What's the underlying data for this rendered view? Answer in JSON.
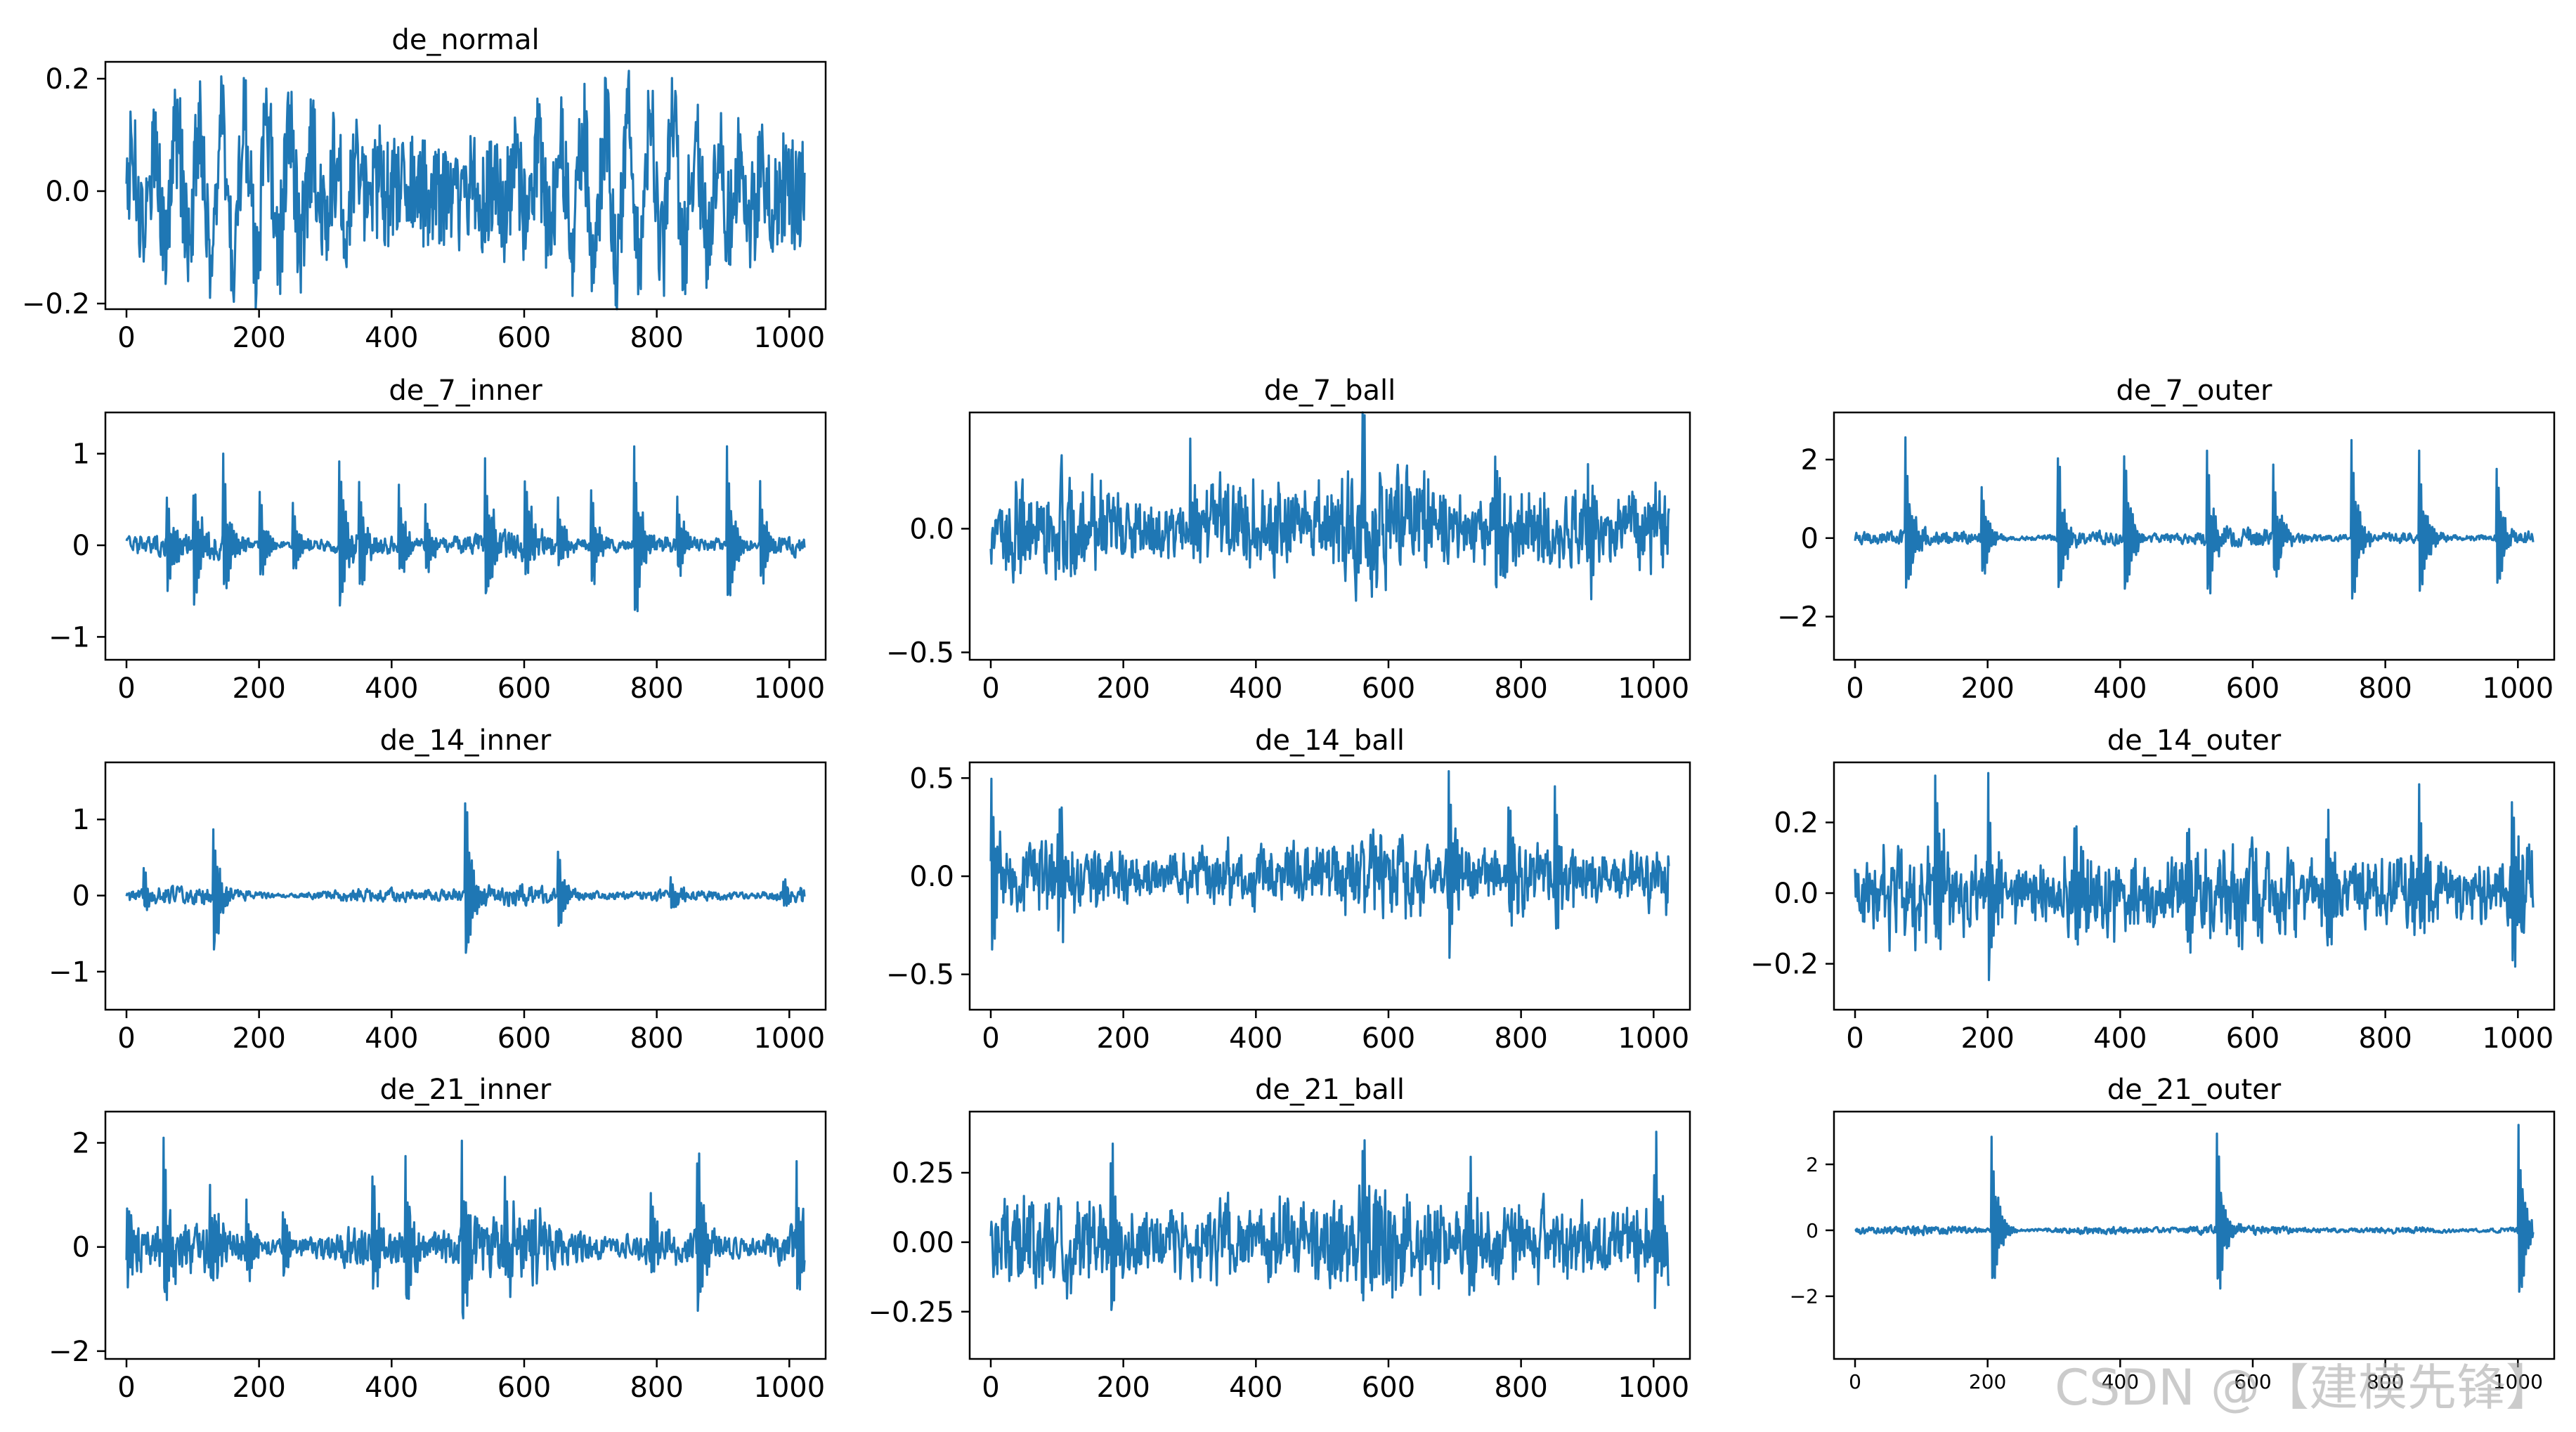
{
  "watermark": "CSDN @【建模先锋】",
  "colors": {
    "line": "#1f77b4",
    "axis": "#000000",
    "background": "#ffffff"
  },
  "chart_data": [
    {
      "type": "line",
      "title": "de_normal",
      "xlim": [
        0,
        1023
      ],
      "xticks": [
        0,
        200,
        400,
        600,
        800,
        1000
      ],
      "ylim": [
        -0.21,
        0.23
      ],
      "yticks": [
        -0.2,
        0.0,
        0.2
      ],
      "ytick_labels": [
        "−0.2",
        "0.0",
        "0.2"
      ],
      "signal": {
        "kind": "smooth",
        "amp": 0.1,
        "noise": 0.2,
        "period": 34,
        "seed": 1,
        "peaks": []
      }
    },
    {
      "type": "line",
      "title": "de_7_inner",
      "xlim": [
        0,
        1023
      ],
      "xticks": [
        0,
        200,
        400,
        600,
        800,
        1000
      ],
      "ylim": [
        -1.25,
        1.45
      ],
      "yticks": [
        -1,
        0,
        1
      ],
      "ytick_labels": [
        "−1",
        "0",
        "1"
      ],
      "signal": {
        "kind": "impulse",
        "amp": 0.12,
        "noise": 0.18,
        "seed": 2,
        "peaks": [
          [
            60,
            0.7
          ],
          [
            100,
            0.9
          ],
          [
            145,
            0.95
          ],
          [
            200,
            0.6
          ],
          [
            250,
            0.5
          ],
          [
            320,
            1.2
          ],
          [
            350,
            0.8
          ],
          [
            410,
            0.7
          ],
          [
            450,
            0.5
          ],
          [
            540,
            1.1
          ],
          [
            600,
            0.8
          ],
          [
            650,
            0.5
          ],
          [
            700,
            0.7
          ],
          [
            765,
            1.35
          ],
          [
            830,
            0.6
          ],
          [
            905,
            1.1
          ],
          [
            955,
            0.7
          ]
        ]
      }
    },
    {
      "type": "line",
      "title": "de_7_ball",
      "xlim": [
        0,
        1023
      ],
      "xticks": [
        0,
        200,
        400,
        600,
        800,
        1000
      ],
      "ylim": [
        -0.53,
        0.47
      ],
      "yticks": [
        -0.5,
        0.0
      ],
      "ytick_labels": [
        "−0.5",
        "0.0"
      ],
      "signal": {
        "kind": "dense",
        "amp": 0.17,
        "noise": 0.35,
        "seed": 3,
        "peaks": [
          [
            60,
            0.3
          ],
          [
            300,
            0.28
          ],
          [
            560,
            0.3
          ],
          [
            760,
            0.45
          ],
          [
            900,
            0.35
          ]
        ]
      }
    },
    {
      "type": "line",
      "title": "de_7_outer",
      "xlim": [
        0,
        1023
      ],
      "xticks": [
        0,
        200,
        400,
        600,
        800,
        1000
      ],
      "ylim": [
        -3.1,
        3.2
      ],
      "yticks": [
        -2,
        0,
        2
      ],
      "ytick_labels": [
        "−2",
        "0",
        "2"
      ],
      "signal": {
        "kind": "impulse",
        "amp": 0.18,
        "noise": 0.15,
        "seed": 4,
        "peaks": [
          [
            75,
            2.6
          ],
          [
            190,
            1.6
          ],
          [
            305,
            2.6
          ],
          [
            405,
            2.7
          ],
          [
            530,
            2.5
          ],
          [
            630,
            2.1
          ],
          [
            748,
            2.8
          ],
          [
            850,
            2.6
          ],
          [
            967,
            2.1
          ]
        ]
      }
    },
    {
      "type": "line",
      "title": "de_14_inner",
      "xlim": [
        0,
        1023
      ],
      "xticks": [
        0,
        200,
        400,
        600,
        800,
        1000
      ],
      "ylim": [
        -1.5,
        1.75
      ],
      "yticks": [
        -1,
        0,
        1
      ],
      "ytick_labels": [
        "−1",
        "0",
        "1"
      ],
      "signal": {
        "kind": "impulse",
        "amp": 0.1,
        "noise": 0.12,
        "seed": 5,
        "peaks": [
          [
            25,
            0.4
          ],
          [
            130,
            1.1
          ],
          [
            510,
            1.55
          ],
          [
            650,
            0.7
          ],
          [
            820,
            0.3
          ],
          [
            990,
            0.25
          ]
        ]
      }
    },
    {
      "type": "line",
      "title": "de_14_ball",
      "xlim": [
        0,
        1023
      ],
      "xticks": [
        0,
        200,
        400,
        600,
        800,
        1000
      ],
      "ylim": [
        -0.68,
        0.58
      ],
      "yticks": [
        -0.5,
        0.0,
        0.5
      ],
      "ytick_labels": [
        "−0.5",
        "0.0",
        "0.5"
      ],
      "signal": {
        "kind": "dense",
        "amp": 0.14,
        "noise": 0.35,
        "seed": 6,
        "peaks": [
          [
            0,
            0.48
          ],
          [
            100,
            0.45
          ],
          [
            690,
            0.6
          ],
          [
            780,
            0.5
          ],
          [
            850,
            0.45
          ]
        ]
      }
    },
    {
      "type": "line",
      "title": "de_14_outer",
      "xlim": [
        0,
        1023
      ],
      "xticks": [
        0,
        200,
        400,
        600,
        800,
        1000
      ],
      "ylim": [
        -0.33,
        0.37
      ],
      "yticks": [
        -0.2,
        0.0,
        0.2
      ],
      "ytick_labels": [
        "−0.2",
        "0.0",
        "0.2"
      ],
      "signal": {
        "kind": "dense",
        "amp": 0.09,
        "noise": 0.25,
        "seed": 7,
        "peaks": [
          [
            120,
            0.3
          ],
          [
            200,
            0.35
          ],
          [
            330,
            0.25
          ],
          [
            500,
            0.25
          ],
          [
            710,
            0.25
          ],
          [
            850,
            0.25
          ],
          [
            990,
            0.25
          ]
        ]
      }
    },
    {
      "type": "line",
      "title": "de_21_inner",
      "xlim": [
        0,
        1023
      ],
      "xticks": [
        0,
        200,
        400,
        600,
        800,
        1000
      ],
      "ylim": [
        -2.15,
        2.6
      ],
      "yticks": [
        -2,
        0,
        2
      ],
      "ytick_labels": [
        "−2",
        "0",
        "2"
      ],
      "signal": {
        "kind": "impulse",
        "amp": 0.45,
        "noise": 0.3,
        "seed": 8,
        "peaks": [
          [
            0,
            1.2
          ],
          [
            55,
            2.3
          ],
          [
            125,
            1.5
          ],
          [
            180,
            1.0
          ],
          [
            235,
            0.9
          ],
          [
            370,
            1.3
          ],
          [
            420,
            1.8
          ],
          [
            505,
            2.2
          ],
          [
            570,
            1.4
          ],
          [
            610,
            1.0
          ],
          [
            790,
            1.1
          ],
          [
            860,
            2.3
          ],
          [
            1010,
            1.6
          ]
        ]
      }
    },
    {
      "type": "line",
      "title": "de_21_ball",
      "xlim": [
        0,
        1023
      ],
      "xticks": [
        0,
        200,
        400,
        600,
        800,
        1000
      ],
      "ylim": [
        -0.42,
        0.47
      ],
      "yticks": [
        -0.25,
        0.0,
        0.25
      ],
      "ytick_labels": [
        "−0.25",
        "0.00",
        "0.25"
      ],
      "signal": {
        "kind": "dense",
        "amp": 0.12,
        "noise": 0.35,
        "seed": 9,
        "peaks": [
          [
            180,
            0.42
          ],
          [
            560,
            0.35
          ],
          [
            720,
            0.3
          ],
          [
            1000,
            0.42
          ]
        ]
      }
    },
    {
      "type": "line",
      "title": "de_21_outer",
      "xlim": [
        0,
        1023
      ],
      "xticks": [
        0,
        200,
        400,
        600,
        800,
        1000
      ],
      "ylim": [
        -3.9,
        3.6
      ],
      "yticks": [
        -2,
        0,
        2
      ],
      "ytick_labels": [
        "−2",
        "0",
        "2"
      ],
      "signal": {
        "kind": "impulse",
        "amp": 0.12,
        "noise": 0.12,
        "seed": 10,
        "peaks": [
          [
            205,
            3.3
          ],
          [
            545,
            3.3
          ],
          [
            1000,
            3.4
          ]
        ]
      }
    }
  ]
}
